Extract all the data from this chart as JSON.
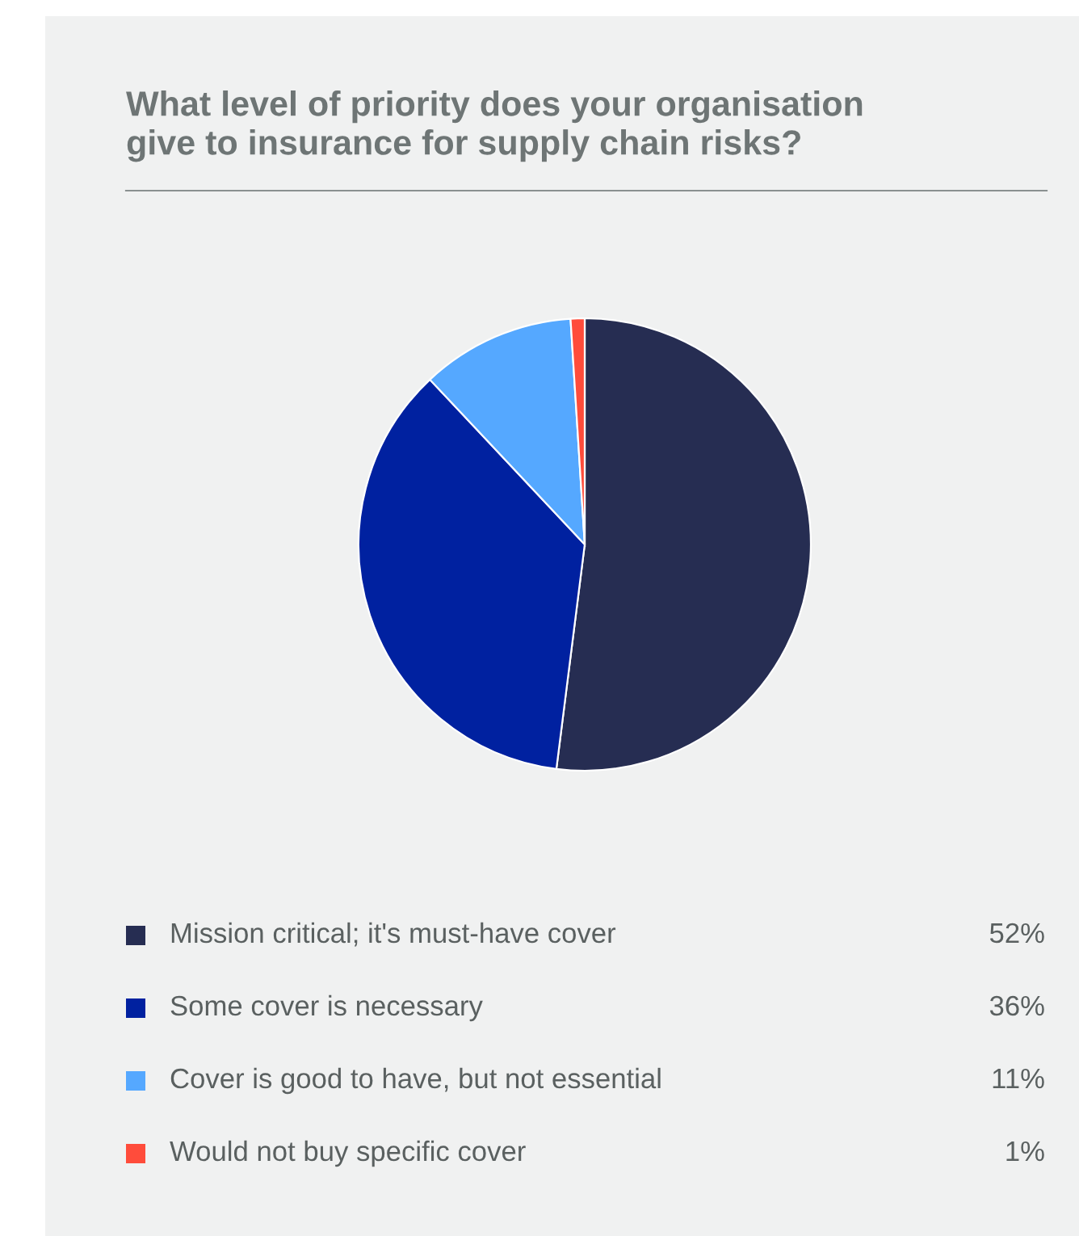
{
  "chart_data": {
    "type": "pie",
    "title": "What level of priority does your organisation\ngive to insurance for supply chain risks?",
    "categories": [
      "Mission critical; it's must-have cover",
      "Some cover is necessary",
      "Cover is good to have, but not essential",
      "Would not buy specific cover"
    ],
    "values": [
      52,
      36,
      11,
      1
    ],
    "colors": [
      "#262d52",
      "#0021a0",
      "#55a8ff",
      "#ff4c3b"
    ],
    "value_labels": [
      "52%",
      "36%",
      "11%",
      "1%"
    ],
    "legend": "bottom"
  }
}
